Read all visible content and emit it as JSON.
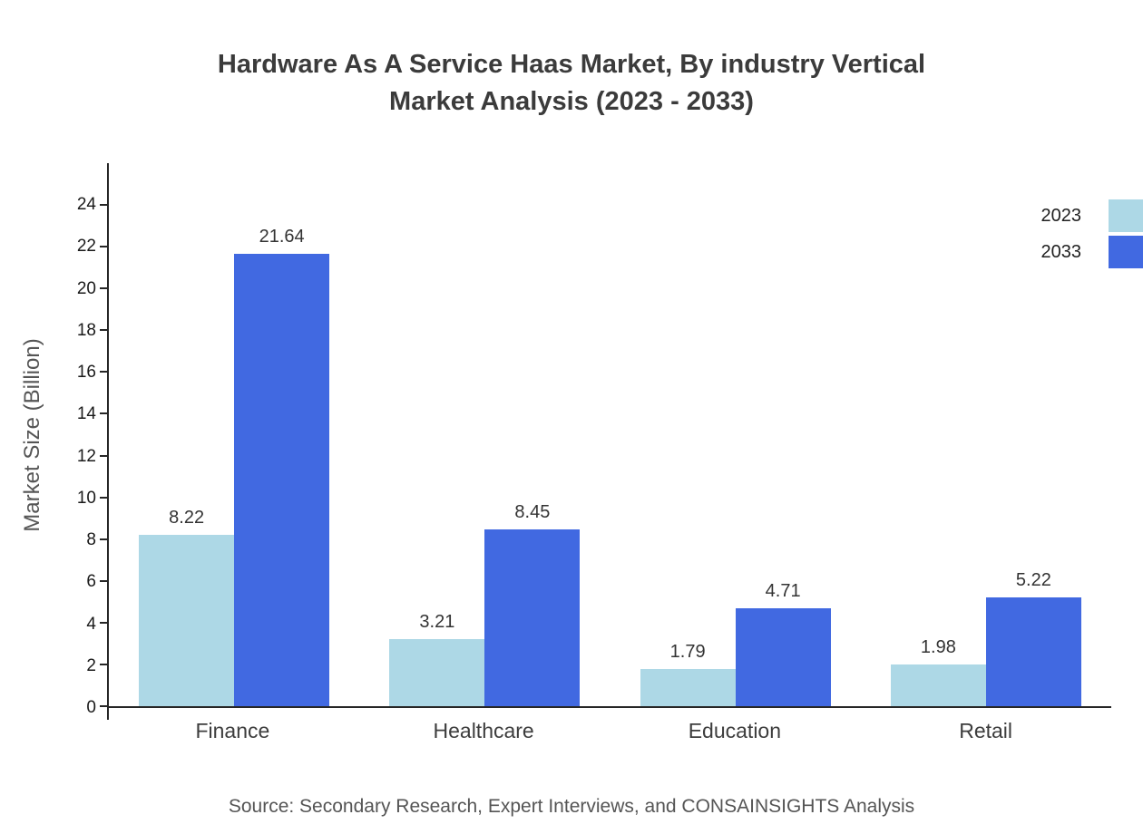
{
  "title": {
    "line1": "Hardware As A Service Haas Market, By industry Vertical",
    "line2": "Market Analysis (2023 - 2033)"
  },
  "chart_data": {
    "type": "bar",
    "categories": [
      "Finance",
      "Healthcare",
      "Education",
      "Retail"
    ],
    "series": [
      {
        "name": "2023",
        "color": "#ADD8E6",
        "values": [
          8.22,
          3.21,
          1.79,
          1.98
        ]
      },
      {
        "name": "2033",
        "color": "#4169E1",
        "values": [
          21.64,
          8.45,
          4.71,
          5.22
        ]
      }
    ],
    "title": "Hardware As A Service Haas Market, By industry Vertical Market Analysis (2023 - 2033)",
    "xlabel": "",
    "ylabel": "Market Size (Billion)",
    "ylim": [
      0,
      26
    ],
    "yticks": [
      0,
      2,
      4,
      6,
      8,
      10,
      12,
      14,
      16,
      18,
      20,
      22,
      24
    ],
    "grid": false,
    "legend_position": "top-right",
    "value_labels": [
      "8.22",
      "21.64",
      "3.21",
      "8.45",
      "1.79",
      "4.71",
      "1.98",
      "5.22"
    ]
  },
  "source": "Source: Secondary Research, Expert Interviews, and CONSAINSIGHTS Analysis"
}
